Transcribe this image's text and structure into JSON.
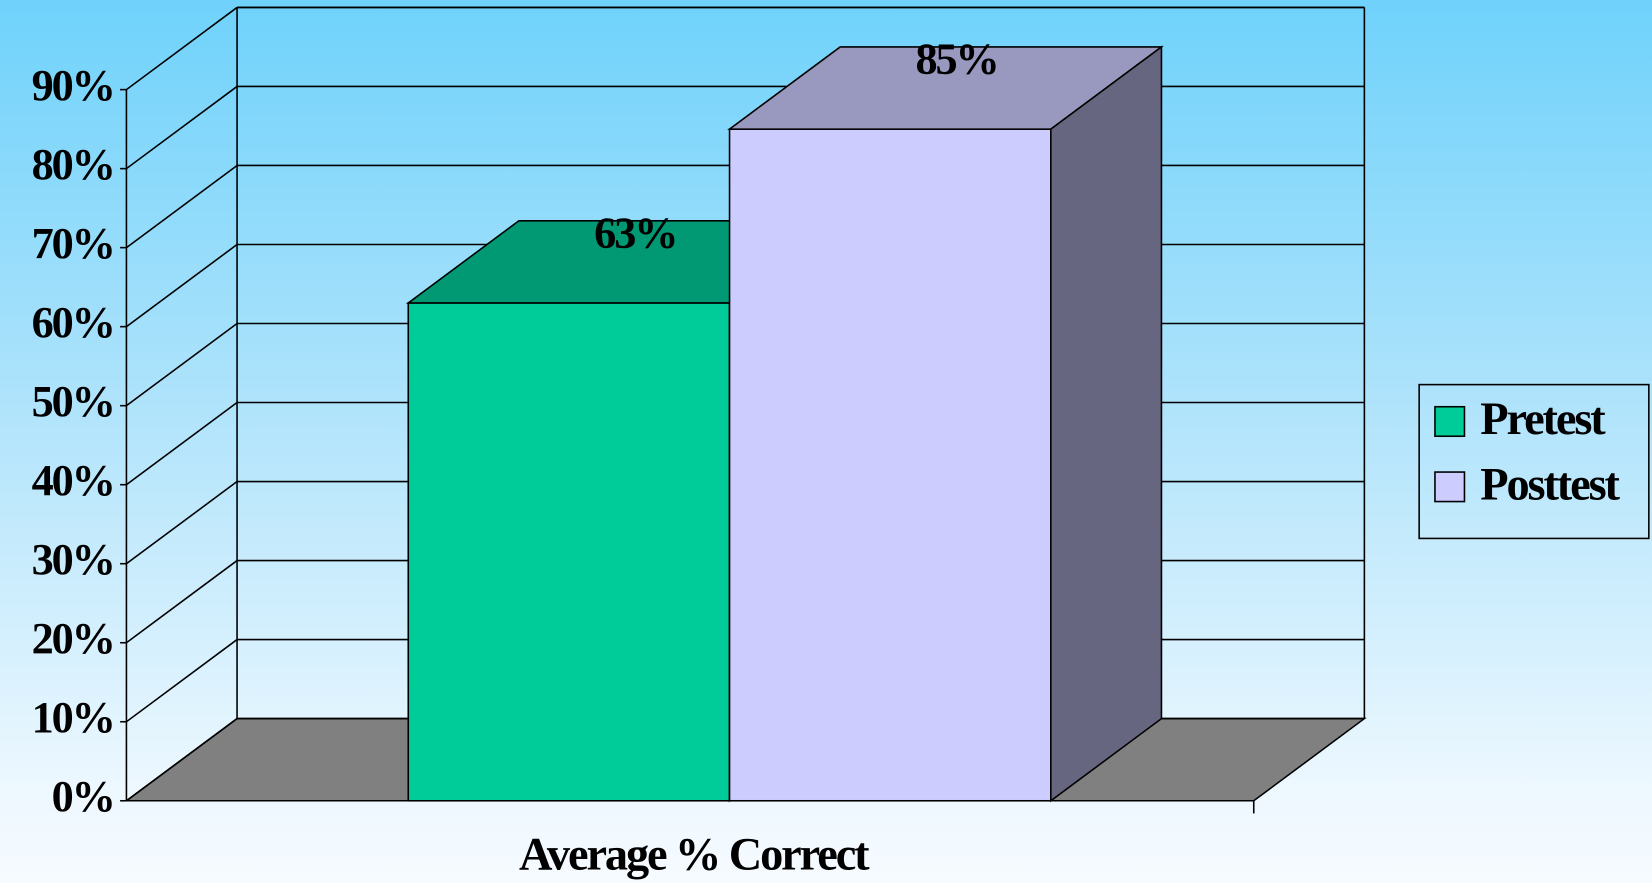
{
  "chart_data": {
    "type": "bar3d",
    "x_label": "Average % Correct",
    "categories": [
      "Average % Correct"
    ],
    "series": [
      {
        "name": "Pretest",
        "color": "#00cc99",
        "values": [
          63
        ],
        "value_labels": [
          "63%"
        ]
      },
      {
        "name": "Posttest",
        "color": "#ccccff",
        "values": [
          85
        ],
        "value_labels": [
          "85%"
        ]
      }
    ],
    "ylim": [
      0,
      90
    ],
    "yticks": [
      {
        "value": 0,
        "label": "0%"
      },
      {
        "value": 10,
        "label": "10%"
      },
      {
        "value": 20,
        "label": "20%"
      },
      {
        "value": 30,
        "label": "30%"
      },
      {
        "value": 40,
        "label": "40%"
      },
      {
        "value": 50,
        "label": "50%"
      },
      {
        "value": 60,
        "label": "60%"
      },
      {
        "value": 70,
        "label": "70%"
      },
      {
        "value": 80,
        "label": "80%"
      },
      {
        "value": 90,
        "label": "90%"
      }
    ],
    "grid": true,
    "legend": "right"
  }
}
